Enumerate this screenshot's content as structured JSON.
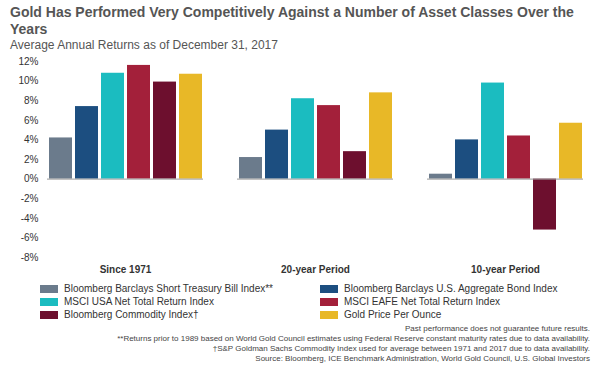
{
  "chart_data": {
    "type": "bar",
    "title": "Gold Has Performed Very Competitively Against a Number of Asset Classes Over the Years",
    "subtitle": "Average Annual Returns as of December 31, 2017",
    "categories": [
      "Since 1971",
      "20-year Period",
      "10-year Period"
    ],
    "series": [
      {
        "name": "Bloomberg Barclays Short Treasury Bill Index**",
        "color": "#6b7b8c",
        "values": [
          4.2,
          2.2,
          0.5
        ]
      },
      {
        "name": "Bloomberg Barclays U.S. Aggregate Bond Index",
        "color": "#1c4e80",
        "values": [
          7.4,
          5.0,
          4.0
        ]
      },
      {
        "name": "MSCI USA Net Total Return Index",
        "color": "#1bbcc0",
        "values": [
          10.8,
          8.2,
          9.8
        ]
      },
      {
        "name": "MSCI EAFE Net Total Return Index",
        "color": "#a3203a",
        "values": [
          11.6,
          7.5,
          4.4
        ]
      },
      {
        "name": "Bloomberg Commodity Index†",
        "color": "#6d0f2e",
        "values": [
          9.9,
          2.8,
          -5.2
        ]
      },
      {
        "name": "Gold Price Per Ounce",
        "color": "#e8b827",
        "values": [
          10.7,
          8.8,
          5.7
        ]
      }
    ],
    "ylim": [
      -8,
      12
    ],
    "yticks": [
      {
        "value": -8,
        "label": "-8%"
      },
      {
        "value": -6,
        "label": "-6%"
      },
      {
        "value": -4,
        "label": "-4%"
      },
      {
        "value": -2,
        "label": "-2%"
      },
      {
        "value": 0,
        "label": "0%"
      },
      {
        "value": 2,
        "label": "2%"
      },
      {
        "value": 4,
        "label": "4%"
      },
      {
        "value": 6,
        "label": "6%"
      },
      {
        "value": 8,
        "label": "8%"
      },
      {
        "value": 10,
        "label": "10%"
      },
      {
        "value": 12,
        "label": "12%"
      }
    ],
    "grid": false,
    "legend": "bottom",
    "data_labels": false,
    "annotations": [
      "Past performance does not guarantee future results.",
      "**Returns prior to 1989 based on World Gold Council estimates using Federal Reserve constant maturity rates due to data availability.",
      "†S&P Goldman Sachs Commodity Index used for average between 1971 and 2017 due to data availability.",
      "Source: Bloomberg, ICE Benchmark Administration, World Gold Council, U.S. Global Investors"
    ]
  }
}
